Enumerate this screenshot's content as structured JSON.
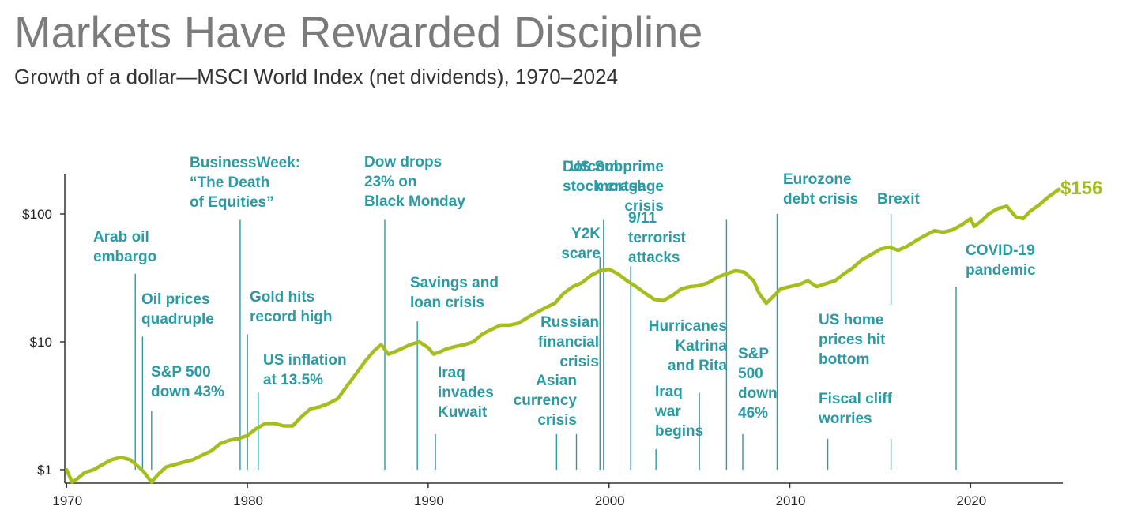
{
  "title": "Markets Have Rewarded Discipline",
  "subtitle": "Growth of a dollar—MSCI World Index (net dividends), 1970–2024",
  "colors": {
    "line": "#a6bd1e",
    "annotation": "#2a9aa3",
    "axis": "#333333"
  },
  "chart_data": {
    "type": "line",
    "y_scale": "log",
    "ylim": [
      1,
      200
    ],
    "xlim": [
      1969.9,
      2025.1
    ],
    "y_ticks": [
      {
        "value": 1,
        "label": "$1"
      },
      {
        "value": 10,
        "label": "$10"
      },
      {
        "value": 100,
        "label": "$100"
      }
    ],
    "x_ticks": [
      {
        "value": 1970,
        "label": "1970"
      },
      {
        "value": 1980,
        "label": "1980"
      },
      {
        "value": 1990,
        "label": "1990"
      },
      {
        "value": 2000,
        "label": "2000"
      },
      {
        "value": 2010,
        "label": "2010"
      },
      {
        "value": 2020,
        "label": "2020"
      }
    ],
    "grid": false,
    "end_label": "$156",
    "series": [
      {
        "points": [
          [
            1970.0,
            1.0
          ],
          [
            1970.3,
            0.8
          ],
          [
            1970.6,
            0.85
          ],
          [
            1971.0,
            0.95
          ],
          [
            1971.5,
            1.0
          ],
          [
            1972.0,
            1.1
          ],
          [
            1972.5,
            1.2
          ],
          [
            1973.0,
            1.25
          ],
          [
            1973.5,
            1.2
          ],
          [
            1974.0,
            1.05
          ],
          [
            1974.3,
            0.95
          ],
          [
            1974.7,
            0.8
          ],
          [
            1975.0,
            0.9
          ],
          [
            1975.5,
            1.05
          ],
          [
            1976.0,
            1.1
          ],
          [
            1976.5,
            1.15
          ],
          [
            1977.0,
            1.2
          ],
          [
            1977.5,
            1.3
          ],
          [
            1978.0,
            1.4
          ],
          [
            1978.5,
            1.6
          ],
          [
            1979.0,
            1.7
          ],
          [
            1979.5,
            1.75
          ],
          [
            1980.0,
            1.85
          ],
          [
            1980.5,
            2.1
          ],
          [
            1981.0,
            2.3
          ],
          [
            1981.5,
            2.3
          ],
          [
            1982.0,
            2.2
          ],
          [
            1982.5,
            2.2
          ],
          [
            1983.0,
            2.6
          ],
          [
            1983.5,
            3.0
          ],
          [
            1984.0,
            3.1
          ],
          [
            1984.5,
            3.3
          ],
          [
            1985.0,
            3.6
          ],
          [
            1985.5,
            4.5
          ],
          [
            1986.0,
            5.6
          ],
          [
            1986.5,
            7.0
          ],
          [
            1987.0,
            8.5
          ],
          [
            1987.4,
            9.5
          ],
          [
            1987.8,
            8.0
          ],
          [
            1988.0,
            8.2
          ],
          [
            1988.5,
            8.8
          ],
          [
            1989.0,
            9.5
          ],
          [
            1989.5,
            10.0
          ],
          [
            1990.0,
            9.0
          ],
          [
            1990.3,
            8.0
          ],
          [
            1990.7,
            8.4
          ],
          [
            1991.0,
            8.8
          ],
          [
            1991.5,
            9.2
          ],
          [
            1992.0,
            9.5
          ],
          [
            1992.5,
            10.0
          ],
          [
            1993.0,
            11.5
          ],
          [
            1993.5,
            12.5
          ],
          [
            1994.0,
            13.5
          ],
          [
            1994.5,
            13.5
          ],
          [
            1995.0,
            14.0
          ],
          [
            1995.5,
            15.5
          ],
          [
            1996.0,
            17.0
          ],
          [
            1996.5,
            18.5
          ],
          [
            1997.0,
            20.0
          ],
          [
            1997.5,
            24.0
          ],
          [
            1998.0,
            27.0
          ],
          [
            1998.5,
            29.0
          ],
          [
            1999.0,
            33.0
          ],
          [
            1999.5,
            36.0
          ],
          [
            2000.0,
            37.0
          ],
          [
            2000.5,
            34.0
          ],
          [
            2001.0,
            30.0
          ],
          [
            2001.5,
            27.0
          ],
          [
            2002.0,
            24.0
          ],
          [
            2002.5,
            21.5
          ],
          [
            2003.0,
            21.0
          ],
          [
            2003.5,
            23.0
          ],
          [
            2004.0,
            26.0
          ],
          [
            2004.5,
            27.0
          ],
          [
            2005.0,
            27.5
          ],
          [
            2005.5,
            29.0
          ],
          [
            2006.0,
            32.0
          ],
          [
            2006.5,
            34.0
          ],
          [
            2007.0,
            36.0
          ],
          [
            2007.5,
            35.0
          ],
          [
            2008.0,
            30.0
          ],
          [
            2008.3,
            24.0
          ],
          [
            2008.7,
            20.0
          ],
          [
            2009.0,
            22.0
          ],
          [
            2009.5,
            26.0
          ],
          [
            2010.0,
            27.0
          ],
          [
            2010.5,
            28.0
          ],
          [
            2011.0,
            30.0
          ],
          [
            2011.5,
            27.0
          ],
          [
            2012.0,
            28.5
          ],
          [
            2012.5,
            30.0
          ],
          [
            2013.0,
            34.0
          ],
          [
            2013.5,
            38.0
          ],
          [
            2014.0,
            44.0
          ],
          [
            2014.5,
            48.0
          ],
          [
            2015.0,
            53.0
          ],
          [
            2015.5,
            55.0
          ],
          [
            2016.0,
            52.0
          ],
          [
            2016.5,
            56.0
          ],
          [
            2017.0,
            62.0
          ],
          [
            2017.5,
            68.0
          ],
          [
            2018.0,
            74.0
          ],
          [
            2018.5,
            72.0
          ],
          [
            2019.0,
            75.0
          ],
          [
            2019.5,
            82.0
          ],
          [
            2020.0,
            92.0
          ],
          [
            2020.2,
            80.0
          ],
          [
            2020.6,
            88.0
          ],
          [
            2021.0,
            100.0
          ],
          [
            2021.5,
            110.0
          ],
          [
            2022.0,
            115.0
          ],
          [
            2022.5,
            95.0
          ],
          [
            2022.9,
            92.0
          ],
          [
            2023.3,
            105.0
          ],
          [
            2023.8,
            118.0
          ],
          [
            2024.3,
            136.0
          ],
          [
            2024.9,
            156.0
          ]
        ]
      }
    ],
    "annotations": [
      {
        "lines": [
          "Arab oil",
          "embargo"
        ],
        "x": 1973.8,
        "line_top": 34.0,
        "line_bottom": 1.0
      },
      {
        "lines": [
          "Oil prices",
          "quadruple"
        ],
        "x": 1974.2,
        "line_top": 11.0,
        "line_bottom": 1.0
      },
      {
        "lines": [
          "S&P 500",
          "down 43%"
        ],
        "x": 1974.7,
        "line_top": 2.9,
        "line_bottom": 1.0
      },
      {
        "lines": [
          "BusinessWeek:",
          "“The Death",
          "of Equities”"
        ],
        "x": 1979.6,
        "line_top": 90.0,
        "line_bottom": 1.0
      },
      {
        "lines": [
          "Gold hits",
          "record high"
        ],
        "x": 1980.0,
        "line_top": 11.5,
        "line_bottom": 1.0
      },
      {
        "lines": [
          "US inflation",
          "at 13.5%"
        ],
        "x": 1980.6,
        "line_top": 4.0,
        "line_bottom": 1.0
      },
      {
        "lines": [
          "Dow drops",
          "23% on",
          "Black Monday"
        ],
        "x": 1987.6,
        "line_top": 90.0,
        "line_bottom": 1.0
      },
      {
        "lines": [
          "Savings and",
          "loan crisis"
        ],
        "x": 1989.4,
        "line_top": 14.5,
        "line_bottom": 1.0
      },
      {
        "lines": [
          "Iraq",
          "invades",
          "Kuwait"
        ],
        "x": 1990.4,
        "line_top": 1.9,
        "line_bottom": 1.0
      },
      {
        "lines": [
          "Asian",
          "currency",
          "crisis"
        ],
        "x": 1997.1,
        "line_top": 1.9,
        "line_bottom": 1.0
      },
      {
        "lines": [
          "Russian",
          "financial",
          "crisis"
        ],
        "x": 1998.2,
        "line_top": 1.9,
        "line_bottom": 1.0
      },
      {
        "lines": [
          "Y2K",
          "scare"
        ],
        "x": 1999.5,
        "line_top": 46.0,
        "line_bottom": 1.0
      },
      {
        "lines": [
          "Dotcom",
          "stock crash"
        ],
        "x": 1999.7,
        "line_top": 90.0,
        "line_bottom": 1.0
      },
      {
        "lines": [
          "9/11",
          "terrorist",
          "attacks"
        ],
        "x": 2001.2,
        "line_top": 39.0,
        "line_bottom": 1.0
      },
      {
        "lines": [
          "Iraq",
          "war",
          "begins"
        ],
        "x": 2002.6,
        "line_top": 1.45,
        "line_bottom": 1.0
      },
      {
        "lines": [
          "Hurricanes",
          "Katrina",
          "and Rita"
        ],
        "x": 2005.0,
        "line_top": 4.0,
        "line_bottom": 1.0
      },
      {
        "lines": [
          "US Subprime",
          "mortgage",
          "crisis"
        ],
        "x": 2006.5,
        "line_top": 90.0,
        "line_bottom": 1.0
      },
      {
        "lines": [
          "S&P",
          "500",
          "down",
          "46%"
        ],
        "x": 2007.4,
        "line_top": 1.9,
        "line_bottom": 1.0
      },
      {
        "lines": [
          "Eurozone",
          "debt crisis"
        ],
        "x": 2009.3,
        "line_top": 100.0,
        "line_bottom": 1.0
      },
      {
        "lines": [
          "Fiscal cliff",
          "worries"
        ],
        "x": 2012.1,
        "line_top": 1.75,
        "line_bottom": 1.0
      },
      {
        "lines": [
          "US home",
          "prices hit",
          "bottom"
        ],
        "x": 2015.6,
        "line_top": 1.75,
        "line_bottom": 1.0
      },
      {
        "lines": [
          "Brexit"
        ],
        "x": 2015.6,
        "line_top": 100.0,
        "line_bottom": 19.5
      },
      {
        "lines": [
          "COVID-19",
          "pandemic"
        ],
        "x": 2019.2,
        "line_top": 27.0,
        "line_bottom": 1.0
      }
    ]
  }
}
